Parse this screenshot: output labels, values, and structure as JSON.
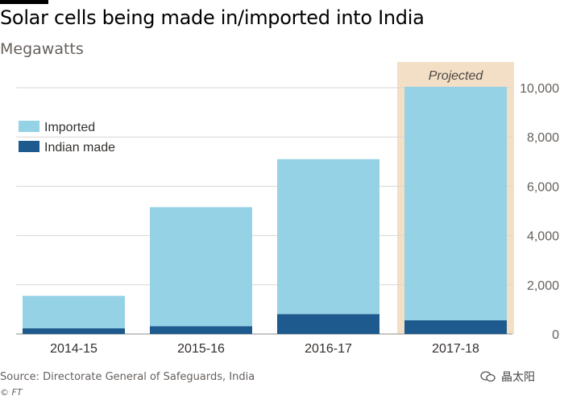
{
  "header": {
    "title": "Solar cells being made in/imported into India",
    "subtitle": "Megawatts"
  },
  "footer": {
    "source": "Source: Directorate General of Safeguards, India",
    "credit": "© FT",
    "watermark": "晶太阳"
  },
  "colors": {
    "imported": "#95d2e6",
    "indian_made": "#1e5a8e",
    "projected_band": "#f2dfc6",
    "grid": "#dad6d2",
    "axis_text": "#66605c"
  },
  "chart_data": {
    "type": "bar",
    "stacked": true,
    "title": "Solar cells being made in/imported into India",
    "ylabel": "Megawatts",
    "xlabel": "",
    "categories": [
      "2014-15",
      "2015-16",
      "2016-17",
      "2017-18"
    ],
    "series": [
      {
        "name": "Indian made",
        "values": [
          230,
          320,
          810,
          560
        ]
      },
      {
        "name": "Imported",
        "values": [
          1320,
          4830,
          6290,
          9480
        ]
      }
    ],
    "legend": [
      "Imported",
      "Indian made"
    ],
    "legend_position": "top-left",
    "ylim": [
      0,
      10000
    ],
    "yticks": [
      0,
      2000,
      4000,
      6000,
      8000,
      10000
    ],
    "ytick_labels": [
      "0",
      "2,000",
      "4,000",
      "6,000",
      "8,000",
      "10,000"
    ],
    "y_axis_side": "right",
    "grid": true,
    "annotations": [
      {
        "text": "Projected",
        "category": "2017-18"
      }
    ]
  }
}
